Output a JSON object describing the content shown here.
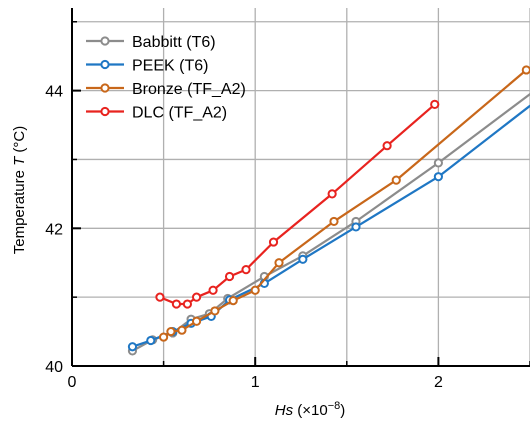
{
  "chart_data": {
    "type": "line",
    "xlabel_italic": "Hs",
    "xlabel_rest": " (×10",
    "xlabel_exp": "−8",
    "xlabel_close": ")",
    "ylabel_main": "Temperature ",
    "ylabel_italic": "T",
    "ylabel_unit": " (°C)",
    "xlim": [
      0,
      2.5
    ],
    "ylim": [
      40,
      45.2
    ],
    "x_ticks": [
      0,
      1,
      2
    ],
    "x_tick_labels": [
      "0",
      "1",
      "2"
    ],
    "y_ticks": [
      40,
      42,
      44
    ],
    "y_tick_labels": [
      "40",
      "42",
      "44"
    ],
    "grid": true,
    "legend_position": "top-left",
    "series": [
      {
        "name": "Babbitt (T6)",
        "color": "#8c8c8c",
        "x": [
          0.33,
          0.44,
          0.55,
          0.65,
          0.75,
          0.85,
          1.05,
          1.26,
          1.55,
          2.0
        ],
        "y": [
          40.22,
          40.38,
          40.48,
          40.68,
          40.76,
          40.98,
          41.3,
          41.6,
          42.1,
          42.95
        ],
        "line_x": [
          0.33,
          0.44,
          0.55,
          0.65,
          0.75,
          0.85,
          1.05,
          1.26,
          1.55,
          2.0,
          2.5
        ],
        "line_y": [
          40.22,
          40.38,
          40.48,
          40.68,
          40.76,
          40.98,
          41.3,
          41.6,
          42.1,
          42.95,
          43.95
        ]
      },
      {
        "name": "PEEK (T6)",
        "color": "#1f77c4",
        "x": [
          0.33,
          0.43,
          0.55,
          0.65,
          0.76,
          0.86,
          1.05,
          1.26,
          1.55,
          2.0
        ],
        "y": [
          40.28,
          40.37,
          40.5,
          40.62,
          40.72,
          40.96,
          41.2,
          41.55,
          42.02,
          42.75
        ],
        "line_x": [
          0.33,
          0.43,
          0.55,
          0.65,
          0.76,
          0.86,
          1.05,
          1.26,
          1.55,
          2.0,
          2.5
        ],
        "line_y": [
          40.28,
          40.37,
          40.5,
          40.62,
          40.72,
          40.96,
          41.2,
          41.55,
          42.02,
          42.75,
          43.78
        ]
      },
      {
        "name": "Bronze (TF_A2)",
        "color": "#c8671a",
        "x": [
          0.5,
          0.54,
          0.6,
          0.68,
          0.78,
          0.88,
          1.0,
          1.13,
          1.43,
          1.77,
          2.48
        ],
        "y": [
          40.42,
          40.5,
          40.52,
          40.65,
          40.8,
          40.95,
          41.1,
          41.5,
          42.1,
          42.7,
          44.3
        ],
        "line_x": [
          0.5,
          0.54,
          0.6,
          0.68,
          0.78,
          0.88,
          1.0,
          1.13,
          1.43,
          1.77,
          2.48
        ],
        "line_y": [
          40.42,
          40.5,
          40.52,
          40.65,
          40.8,
          40.95,
          41.1,
          41.5,
          42.1,
          42.7,
          44.3
        ]
      },
      {
        "name": "DLC (TF_A2)",
        "color": "#e8231f",
        "x": [
          0.48,
          0.57,
          0.63,
          0.68,
          0.77,
          0.86,
          0.95,
          1.1,
          1.42,
          1.72,
          1.98
        ],
        "y": [
          41.0,
          40.9,
          40.9,
          41.0,
          41.1,
          41.3,
          41.4,
          41.8,
          42.5,
          43.2,
          43.8
        ],
        "line_x": [
          0.48,
          0.57,
          0.63,
          0.68,
          0.77,
          0.86,
          0.95,
          1.1,
          1.42,
          1.72,
          1.98
        ],
        "line_y": [
          41.0,
          40.9,
          40.9,
          41.0,
          41.1,
          41.3,
          41.4,
          41.8,
          42.5,
          43.2,
          43.8
        ]
      }
    ]
  }
}
